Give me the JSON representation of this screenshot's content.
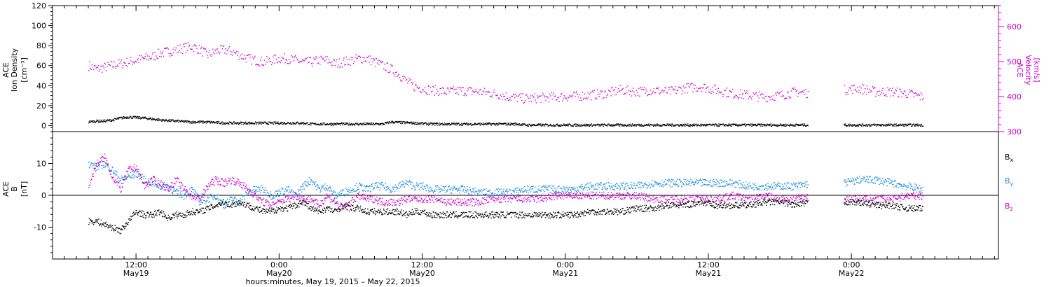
{
  "chart_data": [
    {
      "type": "scatter",
      "panel": "top",
      "ylabel_lines": [
        "ACE",
        "Ion Density",
        "[cm⁻³]"
      ],
      "ylim": [
        -6,
        120
      ],
      "yticks": [
        0,
        20,
        40,
        60,
        80,
        100,
        120
      ],
      "y2label_lines": [
        "ACE",
        "Velocity",
        "[km/s]"
      ],
      "y2lim": [
        300,
        660
      ],
      "y2ticks": [
        300,
        400,
        500,
        600
      ],
      "colors": {
        "density": "#000000",
        "velocity": "#cc00cc"
      },
      "series": [
        {
          "key": "density",
          "axis": "left",
          "x": [
            0,
            2,
            4,
            6,
            8,
            10,
            14,
            18,
            22,
            26,
            30,
            34,
            38,
            42,
            46,
            50,
            54,
            56,
            58,
            62,
            66,
            70,
            74,
            76,
            82,
            86,
            90,
            94,
            98,
            102,
            104,
            106,
            108,
            110,
            114,
            118,
            122,
            130,
            134,
            142,
            150,
            158,
            166,
            174,
            182,
            190,
            198,
            206,
            210
          ],
          "y": [
            4,
            5,
            5,
            6,
            8,
            9,
            8,
            6,
            5,
            4,
            4,
            3,
            3,
            3,
            3,
            3,
            3,
            2,
            2,
            2,
            2,
            2,
            2,
            4,
            3,
            2,
            2,
            2,
            2,
            2,
            2,
            2,
            2,
            1,
            1,
            1,
            1,
            1,
            1,
            1,
            1,
            1,
            1,
            1,
            1,
            1,
            1,
            1,
            1
          ]
        },
        {
          "key": "velocity",
          "axis": "right",
          "x": [
            0,
            2,
            4,
            6,
            8,
            10,
            12,
            14,
            16,
            18,
            20,
            22,
            24,
            26,
            28,
            30,
            32,
            34,
            36,
            38,
            40,
            42,
            44,
            46,
            48,
            50,
            52,
            54,
            56,
            58,
            60,
            62,
            64,
            66,
            68,
            70,
            72,
            74,
            76,
            78,
            80,
            82,
            84,
            86,
            88,
            90,
            94,
            98,
            102,
            106,
            110,
            114,
            118,
            122,
            126,
            130,
            134,
            138,
            142,
            146,
            150,
            154,
            158,
            162,
            166,
            170,
            174,
            178,
            182,
            186,
            190,
            194,
            198,
            202,
            206,
            210
          ],
          "y": [
            490,
            480,
            485,
            490,
            495,
            500,
            505,
            510,
            515,
            525,
            530,
            535,
            540,
            545,
            535,
            520,
            530,
            535,
            530,
            520,
            510,
            505,
            500,
            505,
            510,
            510,
            505,
            500,
            500,
            505,
            505,
            495,
            500,
            505,
            510,
            510,
            500,
            490,
            480,
            465,
            445,
            430,
            425,
            420,
            418,
            415,
            418,
            415,
            410,
            400,
            395,
            398,
            400,
            402,
            405,
            410,
            420,
            415,
            420,
            415,
            425,
            430,
            420,
            410,
            405,
            400,
            405,
            415,
            410,
            412,
            420,
            425,
            415,
            415,
            410,
            400
          ]
        }
      ]
    },
    {
      "type": "scatter",
      "panel": "bottom",
      "ylabel_lines": [
        "ACE",
        "B",
        "[nT]"
      ],
      "ylim": [
        -20,
        20
      ],
      "yticks": [
        -10,
        0,
        10
      ],
      "legend": [
        "B",
        "B",
        "B"
      ],
      "legend_subs": [
        "x",
        "y",
        "z"
      ],
      "colors": {
        "bx": "#000000",
        "by": "#1e8fe0",
        "bz": "#cc00cc"
      },
      "series": [
        {
          "key": "bx",
          "x": [
            0,
            2,
            4,
            6,
            8,
            10,
            12,
            14,
            16,
            18,
            20,
            22,
            24,
            26,
            28,
            30,
            32,
            34,
            36,
            38,
            40,
            42,
            44,
            46,
            48,
            50,
            52,
            54,
            56,
            58,
            60,
            62,
            64,
            66,
            68,
            70,
            72,
            74,
            76,
            78,
            80,
            82,
            84,
            86,
            88,
            90,
            94,
            98,
            102,
            106,
            110,
            114,
            118,
            122,
            126,
            130,
            134,
            138,
            142,
            146,
            150,
            154,
            158,
            162,
            166,
            170,
            174,
            178,
            182,
            186,
            190,
            194,
            198,
            202,
            206,
            210
          ],
          "y": [
            -8,
            -8,
            -9,
            -10,
            -11,
            -8,
            -5,
            -6,
            -6,
            -5,
            -7,
            -6,
            -6,
            -5,
            -5,
            -4,
            -3,
            -2,
            -3,
            -2,
            -3,
            -4,
            -5,
            -5,
            -4,
            -4,
            -3,
            -2,
            -4,
            -5,
            -4,
            -5,
            -3,
            -4,
            -4,
            -5,
            -5,
            -5,
            -5,
            -5,
            -6,
            -5,
            -5,
            -6,
            -6,
            -6,
            -6,
            -6,
            -6,
            -6,
            -6,
            -6,
            -6,
            -6,
            -5,
            -5,
            -5,
            -4,
            -4,
            -3,
            -3,
            -2,
            -3,
            -3,
            -3,
            -2,
            -2,
            -3,
            -2,
            -2,
            -2,
            -2,
            -3,
            -3,
            -4,
            -4
          ]
        },
        {
          "key": "by",
          "x": [
            0,
            2,
            4,
            6,
            8,
            10,
            12,
            14,
            16,
            18,
            20,
            22,
            24,
            26,
            28,
            30,
            32,
            34,
            36,
            38,
            40,
            42,
            44,
            46,
            48,
            50,
            52,
            54,
            56,
            58,
            60,
            62,
            64,
            66,
            68,
            70,
            72,
            74,
            76,
            78,
            80,
            82,
            84,
            86,
            88,
            90,
            94,
            98,
            102,
            106,
            110,
            114,
            118,
            122,
            126,
            130,
            134,
            138,
            142,
            146,
            150,
            154,
            158,
            162,
            166,
            170,
            174,
            178,
            182,
            186,
            190,
            194,
            198,
            202,
            206,
            210
          ],
          "y": [
            10,
            9,
            10,
            8,
            5,
            6,
            7,
            5,
            4,
            3,
            3,
            1,
            0,
            2,
            -2,
            -1,
            0,
            -3,
            -1,
            -2,
            1,
            2,
            2,
            0,
            1,
            2,
            0,
            3,
            5,
            2,
            3,
            0,
            1,
            2,
            3,
            2,
            3,
            3,
            2,
            3,
            4,
            3,
            3,
            2,
            2,
            2,
            2,
            1,
            1,
            1,
            2,
            2,
            2,
            2,
            3,
            3,
            3,
            3,
            4,
            4,
            4,
            4,
            4,
            4,
            3,
            3,
            3,
            3,
            4,
            4,
            4,
            5,
            5,
            4,
            3,
            2
          ]
        },
        {
          "key": "bz",
          "x": [
            0,
            2,
            4,
            6,
            8,
            10,
            12,
            14,
            16,
            18,
            20,
            22,
            24,
            26,
            28,
            30,
            32,
            34,
            36,
            38,
            40,
            42,
            44,
            46,
            48,
            50,
            52,
            54,
            56,
            58,
            60,
            62,
            64,
            66,
            68,
            70,
            72,
            74,
            76,
            78,
            80,
            82,
            84,
            86,
            88,
            90,
            94,
            98,
            102,
            106,
            110,
            114,
            118,
            122,
            126,
            130,
            134,
            138,
            142,
            146,
            150,
            154,
            158,
            162,
            166,
            170,
            174,
            178,
            182,
            186,
            190,
            194,
            198,
            202,
            206,
            210
          ],
          "y": [
            3,
            10,
            12,
            6,
            2,
            8,
            9,
            3,
            5,
            4,
            2,
            5,
            2,
            0,
            -1,
            3,
            5,
            4,
            5,
            4,
            2,
            0,
            -2,
            -3,
            -2,
            -1,
            0,
            -1,
            -1,
            -3,
            0,
            -2,
            -4,
            -2,
            0,
            -1,
            -1,
            -2,
            -2,
            -2,
            -1,
            -1,
            -1,
            -1,
            -1,
            -2,
            -2,
            -2,
            -1,
            -1,
            -1,
            -1,
            0,
            0,
            0,
            0,
            0,
            0,
            -1,
            -1,
            -1,
            -1,
            -1,
            0,
            -1,
            0,
            -1,
            -1,
            0,
            -1,
            -1,
            -1,
            -1,
            -1,
            0,
            0
          ]
        }
      ]
    },
    {
      "type": "axis",
      "xlim": [
        -9,
        229
      ],
      "gap": [
        181,
        190
      ],
      "major_ticks": [
        {
          "x": 12,
          "time": "12:00",
          "date": "May19"
        },
        {
          "x": 48,
          "time": "0:00",
          "date": "May20"
        },
        {
          "x": 84,
          "time": "12:00",
          "date": "May20"
        },
        {
          "x": 120,
          "time": "0:00",
          "date": "May21"
        },
        {
          "x": 156,
          "time": "12:00",
          "date": "May21"
        },
        {
          "x": 192,
          "time": "0:00",
          "date": "May22"
        }
      ],
      "xlabel": "hours:minutes, May 19, 2015 – May 22, 2015"
    }
  ]
}
